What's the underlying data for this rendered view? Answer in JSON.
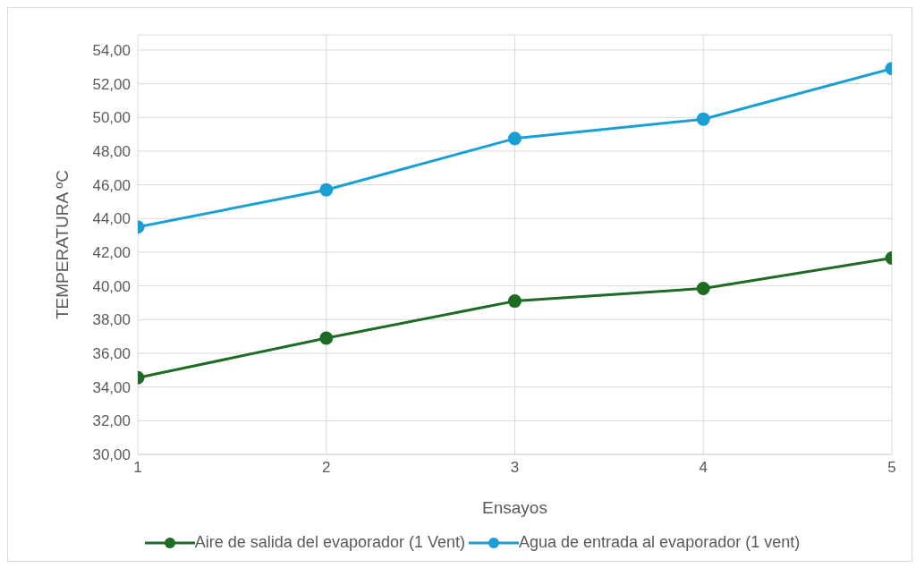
{
  "chart_data": {
    "type": "line",
    "xlabel": "Ensayos",
    "ylabel": "TEMPERATURA  ºC",
    "x": [
      1,
      2,
      3,
      4,
      5
    ],
    "series": [
      {
        "name": "Aire de salida del evaporador (1 Vent)",
        "color": "#1e6b24",
        "values": [
          34.55,
          36.9,
          39.1,
          39.85,
          41.65
        ]
      },
      {
        "name": "Agua de entrada al evaporador (1 vent)",
        "color": "#1a9fd5",
        "values": [
          43.5,
          45.7,
          48.75,
          49.9,
          52.9
        ]
      }
    ],
    "xlim": [
      1,
      5
    ],
    "xticks": [
      1,
      2,
      3,
      4,
      5
    ],
    "ylim": [
      30,
      54.9
    ],
    "yticks": [
      {
        "value": 30,
        "label": "30,00"
      },
      {
        "value": 32,
        "label": "32,00"
      },
      {
        "value": 34,
        "label": "34,00"
      },
      {
        "value": 36,
        "label": "36,00"
      },
      {
        "value": 38,
        "label": "38,00"
      },
      {
        "value": 40,
        "label": "40,00"
      },
      {
        "value": 42,
        "label": "42,00"
      },
      {
        "value": 44,
        "label": "44,00"
      },
      {
        "value": 46,
        "label": "46,00"
      },
      {
        "value": 48,
        "label": "48,00"
      },
      {
        "value": 50,
        "label": "50,00"
      },
      {
        "value": 52,
        "label": "52,00"
      },
      {
        "value": 54,
        "label": "54,00"
      }
    ],
    "grid": true,
    "legend": "bottom",
    "marker": "circle",
    "line_style": "solid"
  }
}
